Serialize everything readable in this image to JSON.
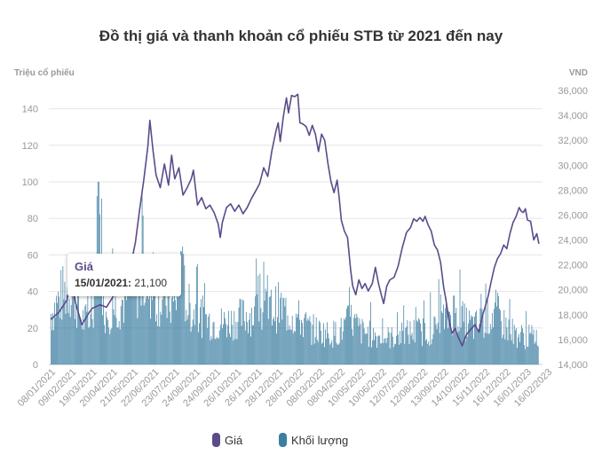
{
  "chart_data": {
    "type": "line",
    "title": "Đồ thị giá và thanh khoản cổ phiếu STB từ 2021 đến nay",
    "y_left": {
      "label": "Triệu cổ phiếu",
      "range": [
        0,
        150
      ],
      "ticks": [
        "0",
        "20",
        "40",
        "60",
        "80",
        "100",
        "120",
        "140"
      ],
      "tick_values": [
        0,
        20,
        40,
        60,
        80,
        100,
        120,
        140
      ]
    },
    "y_right": {
      "label": "VND",
      "range": [
        14000,
        36000
      ],
      "ticks": [
        "14,000",
        "16,000",
        "18,000",
        "20,000",
        "22,000",
        "24,000",
        "26,000",
        "28,000",
        "30,000",
        "32,000",
        "34,000",
        "36,000"
      ],
      "tick_values": [
        14000,
        16000,
        18000,
        20000,
        22000,
        24000,
        26000,
        28000,
        30000,
        32000,
        34000,
        36000
      ]
    },
    "x_ticks": [
      "08/01/2021",
      "09/02/2021",
      "19/03/2021",
      "20/04/2021",
      "21/05/2021",
      "22/06/2021",
      "23/07/2021",
      "24/08/2021",
      "24/09/2021",
      "26/10/2021",
      "26/11/2021",
      "28/12/2021",
      "28/01/2022",
      "08/03/2022",
      "08/04/2022",
      "10/05/2022",
      "10/06/2022",
      "12/07/2022",
      "12/08/2022",
      "13/09/2022",
      "14/10/2022",
      "15/11/2022",
      "16/12/2022",
      "16/01/2023",
      "16/02/2023"
    ],
    "series": [
      {
        "name": "Giá",
        "color": "#5b4b8a",
        "axis": "right",
        "points": [
          [
            0,
            17600
          ],
          [
            0.4,
            18200
          ],
          [
            0.8,
            19200
          ],
          [
            1.0,
            21100
          ],
          [
            1.2,
            19000
          ],
          [
            1.5,
            17200
          ],
          [
            1.8,
            18000
          ],
          [
            2.0,
            18500
          ],
          [
            2.4,
            18800
          ],
          [
            2.7,
            18600
          ],
          [
            3.0,
            19400
          ],
          [
            3.3,
            20500
          ],
          [
            3.6,
            21400
          ],
          [
            3.9,
            22200
          ],
          [
            4.1,
            23800
          ],
          [
            4.3,
            26400
          ],
          [
            4.5,
            28800
          ],
          [
            4.7,
            31500
          ],
          [
            4.8,
            33600
          ],
          [
            4.95,
            31200
          ],
          [
            5.1,
            29200
          ],
          [
            5.3,
            28200
          ],
          [
            5.5,
            30100
          ],
          [
            5.7,
            28400
          ],
          [
            5.85,
            30800
          ],
          [
            6.0,
            28900
          ],
          [
            6.2,
            29800
          ],
          [
            6.4,
            27600
          ],
          [
            6.6,
            28200
          ],
          [
            6.8,
            28900
          ],
          [
            6.9,
            29600
          ],
          [
            7.1,
            26800
          ],
          [
            7.3,
            27400
          ],
          [
            7.5,
            26500
          ],
          [
            7.7,
            26800
          ],
          [
            7.9,
            26200
          ],
          [
            8.1,
            25300
          ],
          [
            8.2,
            24200
          ],
          [
            8.3,
            25400
          ],
          [
            8.5,
            26600
          ],
          [
            8.7,
            26900
          ],
          [
            8.9,
            26300
          ],
          [
            9.1,
            26800
          ],
          [
            9.3,
            26100
          ],
          [
            9.5,
            26600
          ],
          [
            9.7,
            27300
          ],
          [
            9.9,
            27900
          ],
          [
            10.1,
            28500
          ],
          [
            10.3,
            29800
          ],
          [
            10.5,
            29100
          ],
          [
            10.7,
            31200
          ],
          [
            10.9,
            32800
          ],
          [
            11.0,
            33400
          ],
          [
            11.1,
            31900
          ],
          [
            11.25,
            33900
          ],
          [
            11.4,
            35400
          ],
          [
            11.5,
            34200
          ],
          [
            11.65,
            35600
          ],
          [
            11.8,
            35500
          ],
          [
            11.95,
            35700
          ],
          [
            12.05,
            33400
          ],
          [
            12.2,
            33300
          ],
          [
            12.35,
            33100
          ],
          [
            12.5,
            32400
          ],
          [
            12.65,
            33200
          ],
          [
            12.8,
            32500
          ],
          [
            12.95,
            31100
          ],
          [
            13.1,
            32500
          ],
          [
            13.25,
            32000
          ],
          [
            13.4,
            30200
          ],
          [
            13.55,
            28700
          ],
          [
            13.7,
            27800
          ],
          [
            13.85,
            28800
          ],
          [
            13.95,
            27400
          ],
          [
            14.05,
            25600
          ],
          [
            14.2,
            24700
          ],
          [
            14.35,
            24200
          ],
          [
            14.5,
            21600
          ],
          [
            14.6,
            20300
          ],
          [
            14.75,
            19600
          ],
          [
            14.9,
            20800
          ],
          [
            15.05,
            20100
          ],
          [
            15.2,
            20500
          ],
          [
            15.35,
            19900
          ],
          [
            15.55,
            20500
          ],
          [
            15.7,
            21800
          ],
          [
            15.85,
            20500
          ],
          [
            16.0,
            19500
          ],
          [
            16.1,
            18900
          ],
          [
            16.25,
            20300
          ],
          [
            16.4,
            20800
          ],
          [
            16.6,
            21000
          ],
          [
            16.8,
            21900
          ],
          [
            17.0,
            23400
          ],
          [
            17.2,
            24600
          ],
          [
            17.4,
            25000
          ],
          [
            17.55,
            25700
          ],
          [
            17.7,
            25500
          ],
          [
            17.85,
            25800
          ],
          [
            18.0,
            25500
          ],
          [
            18.1,
            25900
          ],
          [
            18.25,
            25200
          ],
          [
            18.4,
            24700
          ],
          [
            18.55,
            23600
          ],
          [
            18.7,
            23200
          ],
          [
            18.85,
            22200
          ],
          [
            19.0,
            20200
          ],
          [
            19.1,
            19300
          ],
          [
            19.25,
            17600
          ],
          [
            19.4,
            16500
          ],
          [
            19.55,
            16900
          ],
          [
            19.7,
            16200
          ],
          [
            19.9,
            15500
          ],
          [
            20.1,
            16400
          ],
          [
            20.3,
            16800
          ],
          [
            20.5,
            17200
          ],
          [
            20.7,
            16600
          ],
          [
            20.85,
            17800
          ],
          [
            21.0,
            18600
          ],
          [
            21.15,
            19500
          ],
          [
            21.3,
            20700
          ],
          [
            21.45,
            21800
          ],
          [
            21.6,
            22500
          ],
          [
            21.75,
            22900
          ],
          [
            21.9,
            23600
          ],
          [
            22.05,
            23300
          ],
          [
            22.2,
            24500
          ],
          [
            22.35,
            25400
          ],
          [
            22.5,
            25900
          ],
          [
            22.65,
            26600
          ],
          [
            22.75,
            26300
          ],
          [
            22.85,
            26200
          ],
          [
            22.95,
            26500
          ],
          [
            23.05,
            25600
          ],
          [
            23.2,
            25500
          ],
          [
            23.35,
            24000
          ],
          [
            23.5,
            24500
          ],
          [
            23.6,
            23700
          ]
        ]
      },
      {
        "name": "Khối lượng",
        "color": "#3c7ea2",
        "axis": "left",
        "note": "daily volume bars (millions), dense series",
        "profile": [
          [
            0,
            34
          ],
          [
            0.5,
            45
          ],
          [
            1.0,
            52
          ],
          [
            1.5,
            30
          ],
          [
            2.0,
            27
          ],
          [
            2.3,
            100
          ],
          [
            2.6,
            35
          ],
          [
            3.0,
            38
          ],
          [
            3.5,
            42
          ],
          [
            4.0,
            50
          ],
          [
            4.5,
            55
          ],
          [
            5.0,
            45
          ],
          [
            5.5,
            43
          ],
          [
            6.0,
            38
          ],
          [
            6.3,
            62
          ],
          [
            6.6,
            38
          ],
          [
            7.0,
            35
          ],
          [
            7.5,
            30
          ],
          [
            8.0,
            27
          ],
          [
            8.5,
            28
          ],
          [
            9.0,
            30
          ],
          [
            9.5,
            33
          ],
          [
            10.0,
            35
          ],
          [
            10.5,
            36
          ],
          [
            11.0,
            38
          ],
          [
            11.5,
            34
          ],
          [
            12.0,
            30
          ],
          [
            12.5,
            24
          ],
          [
            13.0,
            22
          ],
          [
            13.5,
            20
          ],
          [
            14.0,
            22
          ],
          [
            14.5,
            30
          ],
          [
            15.0,
            22
          ],
          [
            15.5,
            20
          ],
          [
            16.0,
            18
          ],
          [
            16.5,
            18
          ],
          [
            17.0,
            20
          ],
          [
            17.5,
            22
          ],
          [
            18.0,
            22
          ],
          [
            18.5,
            23
          ],
          [
            19.0,
            30
          ],
          [
            19.5,
            36
          ],
          [
            20.0,
            28
          ],
          [
            20.5,
            25
          ],
          [
            21.0,
            30
          ],
          [
            21.5,
            35
          ],
          [
            22.0,
            25
          ],
          [
            22.5,
            20
          ],
          [
            23.0,
            18
          ],
          [
            23.6,
            20
          ]
        ]
      }
    ],
    "tooltip": {
      "series": "Giá",
      "date": "15/01/2021:",
      "value": "21,100"
    },
    "legend": {
      "placement": "bottom-center"
    }
  }
}
